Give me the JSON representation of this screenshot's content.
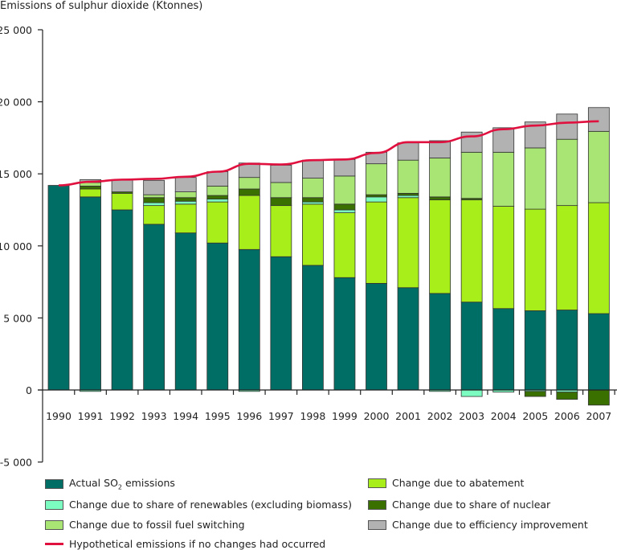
{
  "chart_data": {
    "type": "bar",
    "stacked": true,
    "title": "Emissions of sulphur dioxide (Ktonnes)",
    "xlabel": "",
    "ylabel": "Emissions of sulphur dioxide (Ktonnes)",
    "ylim": [
      -5000,
      25000
    ],
    "yticks": [
      -5000,
      0,
      5000,
      10000,
      15000,
      20000,
      25000
    ],
    "ytick_labels": [
      "-5 000",
      "0",
      "5 000",
      "10 000",
      "15 000",
      "20 000",
      "25 000"
    ],
    "grid": false,
    "legend_position": "bottom",
    "categories": [
      "1990",
      "1991",
      "1992",
      "1993",
      "1994",
      "1995",
      "1996",
      "1997",
      "1998",
      "1999",
      "2000",
      "2001",
      "2002",
      "2003",
      "2004",
      "2005",
      "2006",
      "2007"
    ],
    "series": [
      {
        "key": "actual",
        "name": "Actual SO2 emissions",
        "color": "#006e64",
        "values": [
          14200,
          13400,
          12500,
          11500,
          10900,
          10200,
          9750,
          9250,
          8650,
          7800,
          7400,
          7100,
          6700,
          6100,
          5650,
          5500,
          5550,
          5300
        ]
      },
      {
        "key": "abatement",
        "name": "Change due to abatement",
        "color": "#a8ee1a",
        "values": [
          0,
          550,
          1150,
          1300,
          2000,
          2850,
          3750,
          3550,
          4250,
          4500,
          5650,
          6250,
          6500,
          7100,
          7100,
          7050,
          7250,
          7700
        ]
      },
      {
        "key": "renewables",
        "name": "Change due to share of renewables (excluding biomass)",
        "color": "#7dfcc1",
        "values": [
          0,
          -100,
          0,
          200,
          200,
          200,
          -100,
          0,
          150,
          200,
          350,
          150,
          -100,
          -450,
          -150,
          -100,
          -150,
          0
        ]
      },
      {
        "key": "nuclear",
        "name": "Change due to share of nuclear",
        "color": "#3a7000",
        "values": [
          0,
          200,
          100,
          350,
          250,
          250,
          450,
          550,
          300,
          400,
          150,
          150,
          200,
          100,
          0,
          -350,
          -500,
          -1050
        ]
      },
      {
        "key": "switching",
        "name": "Change due to fossil fuel switching",
        "color": "#a9e574",
        "values": [
          0,
          250,
          0,
          200,
          400,
          650,
          800,
          1050,
          1350,
          1950,
          2150,
          2300,
          2700,
          3200,
          3750,
          4250,
          4600,
          4950
        ]
      },
      {
        "key": "efficiency",
        "name": "Change due to efficiency improvement",
        "color": "#b2b2b2",
        "values": [
          0,
          200,
          850,
          1000,
          1000,
          1000,
          1000,
          1200,
          1250,
          1150,
          800,
          1200,
          1200,
          1400,
          1700,
          1800,
          1750,
          1650
        ]
      }
    ],
    "line_series": {
      "name": "Hypothetical emissions if no changes had occurred",
      "color": "#e0103f",
      "values": [
        14200,
        14450,
        14600,
        14650,
        14800,
        15150,
        15700,
        15650,
        15950,
        16000,
        16450,
        17200,
        17200,
        17600,
        18100,
        18350,
        18550,
        18650
      ]
    }
  },
  "legend": {
    "items": [
      {
        "label_pre": "Actual SO",
        "label_sub": "2",
        "label_post": " emissions",
        "color": "#006e64"
      },
      {
        "label": "Change due to abatement",
        "color": "#a8ee1a"
      },
      {
        "label": "Change due to share of renewables (excluding biomass)",
        "color": "#7dfcc1"
      },
      {
        "label": "Change due to share of nuclear",
        "color": "#3a7000"
      },
      {
        "label": "Change due to fossil fuel switching",
        "color": "#a9e574"
      },
      {
        "label": "Change due to efficiency improvement",
        "color": "#b2b2b2"
      },
      {
        "label": "Hypothetical emissions if no changes had occurred",
        "color": "#e0103f"
      }
    ]
  }
}
